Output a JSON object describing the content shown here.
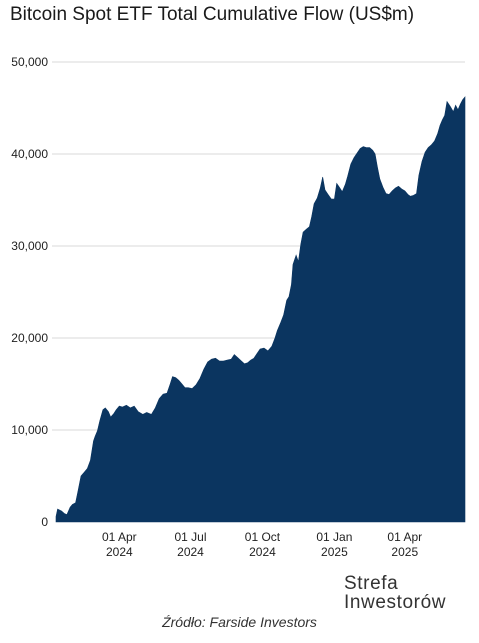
{
  "chart_data": {
    "type": "area",
    "title": "Bitcoin Spot ETF Total Cumulative Flow (US$m)",
    "xlabel": "",
    "ylabel": "",
    "ylim": [
      0,
      50000
    ],
    "y_ticks": [
      0,
      10000,
      20000,
      30000,
      40000,
      50000
    ],
    "y_tick_labels": [
      "0",
      "10,000",
      "20,000",
      "30,000",
      "40,000",
      "50,000"
    ],
    "x_ticks": [
      {
        "date": "2024-04-01",
        "label_top": "01 Apr",
        "label_bottom": "2024"
      },
      {
        "date": "2024-07-01",
        "label_top": "01 Jul",
        "label_bottom": "2024"
      },
      {
        "date": "2024-10-01",
        "label_top": "01 Oct",
        "label_bottom": "2024"
      },
      {
        "date": "2025-01-01",
        "label_top": "01 Jan",
        "label_bottom": "2025"
      },
      {
        "date": "2025-04-01",
        "label_top": "01 Apr",
        "label_bottom": "2025"
      }
    ],
    "grid": "horizontal",
    "color": "#0b3560",
    "series": [
      {
        "points": [
          [
            "2024-01-11",
            600
          ],
          [
            "2024-01-13",
            1400
          ],
          [
            "2024-01-18",
            1200
          ],
          [
            "2024-01-22",
            900
          ],
          [
            "2024-01-25",
            800
          ],
          [
            "2024-01-29",
            1600
          ],
          [
            "2024-02-01",
            1900
          ],
          [
            "2024-02-05",
            2100
          ],
          [
            "2024-02-08",
            3300
          ],
          [
            "2024-02-12",
            5000
          ],
          [
            "2024-02-16",
            5400
          ],
          [
            "2024-02-20",
            5800
          ],
          [
            "2024-02-24",
            6700
          ],
          [
            "2024-02-28",
            8800
          ],
          [
            "2024-03-01",
            9300
          ],
          [
            "2024-03-04",
            9900
          ],
          [
            "2024-03-07",
            11000
          ],
          [
            "2024-03-11",
            12200
          ],
          [
            "2024-03-14",
            12400
          ],
          [
            "2024-03-18",
            12000
          ],
          [
            "2024-03-21",
            11400
          ],
          [
            "2024-03-25",
            11800
          ],
          [
            "2024-03-28",
            12200
          ],
          [
            "2024-04-01",
            12600
          ],
          [
            "2024-04-05",
            12500
          ],
          [
            "2024-04-10",
            12700
          ],
          [
            "2024-04-15",
            12400
          ],
          [
            "2024-04-20",
            12600
          ],
          [
            "2024-04-25",
            12000
          ],
          [
            "2024-05-01",
            11700
          ],
          [
            "2024-05-06",
            11900
          ],
          [
            "2024-05-12",
            11700
          ],
          [
            "2024-05-17",
            12400
          ],
          [
            "2024-05-22",
            13400
          ],
          [
            "2024-05-27",
            13900
          ],
          [
            "2024-06-01",
            14000
          ],
          [
            "2024-06-05",
            15000
          ],
          [
            "2024-06-08",
            15800
          ],
          [
            "2024-06-12",
            15700
          ],
          [
            "2024-06-16",
            15400
          ],
          [
            "2024-06-20",
            15000
          ],
          [
            "2024-06-24",
            14600
          ],
          [
            "2024-06-28",
            14600
          ],
          [
            "2024-07-03",
            14500
          ],
          [
            "2024-07-08",
            14900
          ],
          [
            "2024-07-13",
            15600
          ],
          [
            "2024-07-18",
            16600
          ],
          [
            "2024-07-23",
            17400
          ],
          [
            "2024-07-28",
            17700
          ],
          [
            "2024-08-02",
            17800
          ],
          [
            "2024-08-07",
            17500
          ],
          [
            "2024-08-12",
            17500
          ],
          [
            "2024-08-17",
            17600
          ],
          [
            "2024-08-22",
            17700
          ],
          [
            "2024-08-26",
            18200
          ],
          [
            "2024-08-30",
            17900
          ],
          [
            "2024-09-04",
            17500
          ],
          [
            "2024-09-08",
            17200
          ],
          [
            "2024-09-12",
            17300
          ],
          [
            "2024-09-16",
            17600
          ],
          [
            "2024-09-20",
            17800
          ],
          [
            "2024-09-24",
            18300
          ],
          [
            "2024-09-28",
            18800
          ],
          [
            "2024-10-03",
            18900
          ],
          [
            "2024-10-08",
            18600
          ],
          [
            "2024-10-13",
            19100
          ],
          [
            "2024-10-17",
            20000
          ],
          [
            "2024-10-20",
            20800
          ],
          [
            "2024-10-24",
            21600
          ],
          [
            "2024-10-28",
            22500
          ],
          [
            "2024-11-01",
            24100
          ],
          [
            "2024-11-04",
            24500
          ],
          [
            "2024-11-07",
            25800
          ],
          [
            "2024-11-09",
            28000
          ],
          [
            "2024-11-13",
            29000
          ],
          [
            "2024-11-16",
            28300
          ],
          [
            "2024-11-19",
            30200
          ],
          [
            "2024-11-22",
            31500
          ],
          [
            "2024-11-26",
            31800
          ],
          [
            "2024-11-30",
            32100
          ],
          [
            "2024-12-03",
            33200
          ],
          [
            "2024-12-06",
            34600
          ],
          [
            "2024-12-10",
            35200
          ],
          [
            "2024-12-14",
            36300
          ],
          [
            "2024-12-17",
            37500
          ],
          [
            "2024-12-20",
            36100
          ],
          [
            "2024-12-24",
            35600
          ],
          [
            "2024-12-28",
            35100
          ],
          [
            "2025-01-01",
            35100
          ],
          [
            "2025-01-04",
            36800
          ],
          [
            "2025-01-08",
            36300
          ],
          [
            "2025-01-11",
            35900
          ],
          [
            "2025-01-15",
            36700
          ],
          [
            "2025-01-18",
            37600
          ],
          [
            "2025-01-22",
            38900
          ],
          [
            "2025-01-26",
            39600
          ],
          [
            "2025-01-30",
            40100
          ],
          [
            "2025-02-03",
            40600
          ],
          [
            "2025-02-07",
            40800
          ],
          [
            "2025-02-11",
            40700
          ],
          [
            "2025-02-15",
            40700
          ],
          [
            "2025-02-19",
            40400
          ],
          [
            "2025-02-22",
            40000
          ],
          [
            "2025-02-25",
            38600
          ],
          [
            "2025-02-28",
            37300
          ],
          [
            "2025-03-04",
            36400
          ],
          [
            "2025-03-08",
            35700
          ],
          [
            "2025-03-12",
            35600
          ],
          [
            "2025-03-16",
            36000
          ],
          [
            "2025-03-20",
            36300
          ],
          [
            "2025-03-24",
            36500
          ],
          [
            "2025-03-28",
            36200
          ],
          [
            "2025-04-01",
            36000
          ],
          [
            "2025-04-05",
            35600
          ],
          [
            "2025-04-08",
            35400
          ],
          [
            "2025-04-12",
            35500
          ],
          [
            "2025-04-16",
            35700
          ],
          [
            "2025-04-19",
            37700
          ],
          [
            "2025-04-23",
            39200
          ],
          [
            "2025-04-27",
            40200
          ],
          [
            "2025-05-01",
            40700
          ],
          [
            "2025-05-05",
            41000
          ],
          [
            "2025-05-09",
            41400
          ],
          [
            "2025-05-13",
            42200
          ],
          [
            "2025-05-16",
            43100
          ],
          [
            "2025-05-19",
            43700
          ],
          [
            "2025-05-22",
            44200
          ],
          [
            "2025-05-25",
            45700
          ],
          [
            "2025-05-29",
            45200
          ],
          [
            "2025-06-02",
            44600
          ],
          [
            "2025-06-05",
            45300
          ],
          [
            "2025-06-08",
            44800
          ],
          [
            "2025-06-11",
            45400
          ],
          [
            "2025-06-14",
            45900
          ],
          [
            "2025-06-17",
            46200
          ]
        ]
      }
    ]
  },
  "brand": {
    "line1": "Strefa",
    "line2": "Inwestorów"
  },
  "source": "Źródło: Farside Investors"
}
